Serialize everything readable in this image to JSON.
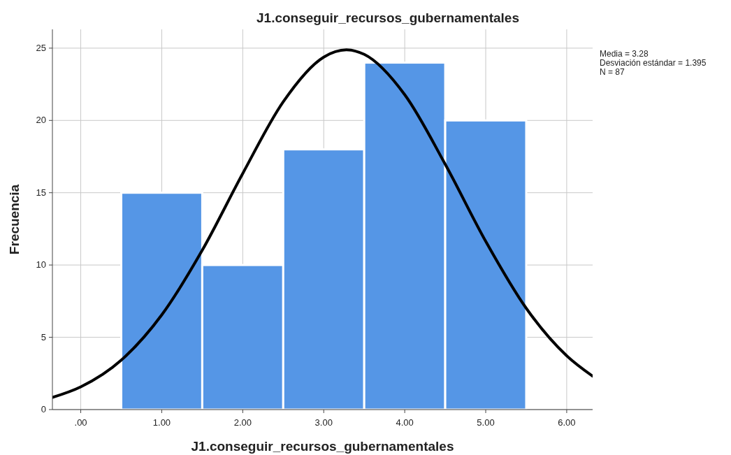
{
  "chart_data": {
    "type": "histogram",
    "title": "J1.conseguir_recursos_gubernamentales",
    "xlabel": "J1.conseguir_recursos_gubernamentales",
    "ylabel": "Frecuencia",
    "annotations": [
      "Media = 3.28",
      "Desviación estándar = 1.395",
      "N = 87"
    ],
    "series": [
      {
        "bins": [
          0.5,
          1.5,
          2.5,
          3.5,
          4.5,
          5.5
        ],
        "values": [
          15,
          10,
          18,
          24,
          20
        ],
        "color": "#5596e6"
      },
      {
        "type": "line",
        "x": [
          -0.35,
          0,
          0.5,
          1,
          1.5,
          2,
          2.5,
          3,
          3.28,
          3.5,
          4,
          4.5,
          5,
          5.5,
          6,
          6.32
        ],
        "values": [
          0.84,
          1.57,
          3.42,
          6.55,
          11.02,
          16.33,
          21.29,
          24.38,
          24.88,
          24.57,
          21.78,
          16.97,
          11.64,
          7.01,
          3.72,
          2.31
        ],
        "color": "#000000"
      }
    ],
    "xlim": [
      -0.35,
      6.32
    ],
    "ylim": [
      0,
      26.3
    ],
    "xticks": [
      {
        "value": 0,
        "label": ".00"
      },
      {
        "value": 1,
        "label": "1.00"
      },
      {
        "value": 2,
        "label": "2.00"
      },
      {
        "value": 3,
        "label": "3.00"
      },
      {
        "value": 4,
        "label": "4.00"
      },
      {
        "value": 5,
        "label": "5.00"
      },
      {
        "value": 6,
        "label": "6.00"
      }
    ],
    "yticks": [
      0,
      5,
      10,
      15,
      20,
      25
    ],
    "grid": true
  }
}
